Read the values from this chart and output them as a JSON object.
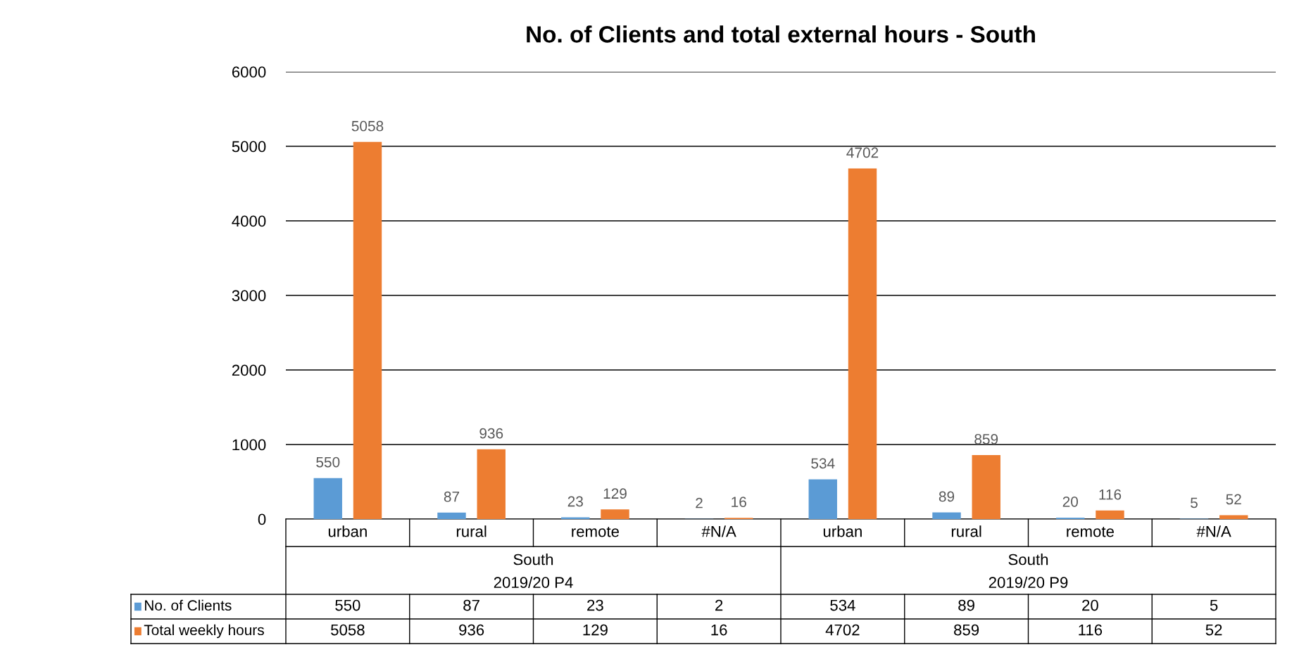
{
  "chart_data": {
    "type": "bar",
    "title": "No. of Clients and total external hours - South",
    "categories": [
      "urban",
      "rural",
      "remote",
      "#N/A",
      "urban",
      "rural",
      "remote",
      "#N/A"
    ],
    "series": [
      {
        "name": "No. of Clients",
        "color": "#5b9bd5",
        "values": [
          550,
          87,
          23,
          2,
          534,
          89,
          20,
          5
        ],
        "value_labels": [
          "550",
          "87",
          "23",
          "2",
          "534",
          "89",
          "20",
          "5"
        ]
      },
      {
        "name": "Total weekly hours",
        "color": "#ed7d31",
        "values": [
          5058,
          936,
          129,
          16,
          4702,
          859,
          116,
          52
        ],
        "value_labels": [
          "5058",
          "936",
          "129",
          "16",
          "4702",
          "859",
          "116",
          "52"
        ]
      }
    ],
    "annotations": [
      "South",
      "2019/20 P4",
      "South",
      "2019/20 P9",
      "550",
      "87",
      "23",
      "2",
      "534",
      "89",
      "20",
      "5",
      "5058",
      "936",
      "129",
      "16",
      "4702",
      "859",
      "116",
      "52"
    ],
    "ylim": [
      0,
      6000
    ],
    "yticks": [
      0,
      1000,
      2000,
      3000,
      4000,
      5000,
      6000
    ],
    "grid": "y",
    "legend": "bottom"
  }
}
